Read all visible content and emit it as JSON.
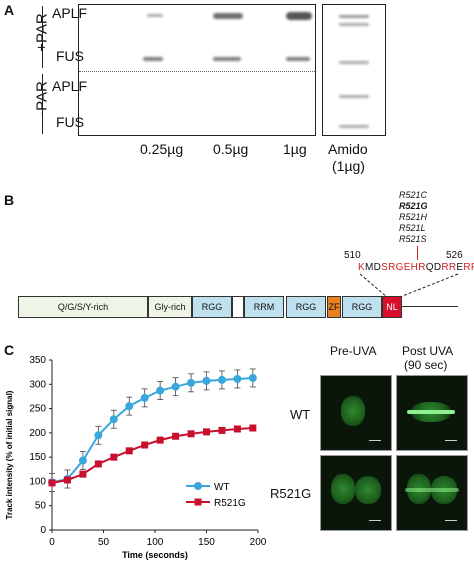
{
  "panel_a": {
    "letter": "A",
    "group_plus": "+PAR",
    "group_minus": "-PAR",
    "row_labels": [
      "APLF",
      "FUS",
      "APLF",
      "FUS"
    ],
    "col_labels": [
      "0.25µg",
      "0.5µg",
      "1µg"
    ],
    "amido_label_1": "Amido",
    "amido_label_2": "(1µg)"
  },
  "panel_b": {
    "letter": "B",
    "mutations": [
      "R521C",
      "R521G",
      "R521H",
      "R521L",
      "R521S"
    ],
    "pos_start": "510",
    "pos_end": "526",
    "sequence": [
      {
        "t": "K",
        "c": "#cc2222"
      },
      {
        "t": "MD",
        "c": "#111111"
      },
      {
        "t": "SRGEHR",
        "c": "#cc2222"
      },
      {
        "t": "QD",
        "c": "#111111"
      },
      {
        "t": "R",
        "c": "#cc2222"
      },
      {
        "t": "R",
        "c": "#cc2222"
      },
      {
        "t": "E",
        "c": "#111111"
      },
      {
        "t": "RPY",
        "c": "#cc2222"
      }
    ],
    "domains": [
      "Q/G/S/Y-rich",
      "Gly-rich",
      "RGG",
      "RRM",
      "RGG",
      "ZF",
      "RGG",
      "NL"
    ]
  },
  "panel_c": {
    "letter": "C",
    "microscopy": {
      "col_labels": [
        "Pre-UVA",
        "Post UVA",
        "(90 sec)"
      ],
      "row_labels": [
        "WT",
        "R521G"
      ]
    }
  },
  "chart_data": {
    "type": "line",
    "xlabel": "Time (seconds)",
    "ylabel": "Track intensity (% of initial signal)",
    "xlim": [
      0,
      200
    ],
    "ylim": [
      0,
      350
    ],
    "xticks": [
      0,
      50,
      100,
      150,
      200
    ],
    "yticks": [
      0,
      50,
      100,
      150,
      200,
      250,
      300,
      350
    ],
    "legend_position": "lower-right",
    "series": [
      {
        "name": "WT",
        "color": "#3aa7dc",
        "x": [
          0,
          15,
          30,
          45,
          60,
          75,
          90,
          105,
          120,
          135,
          150,
          165,
          180,
          195
        ],
        "y": [
          98,
          105,
          143,
          195,
          228,
          255,
          272,
          287,
          295,
          303,
          307,
          309,
          311,
          313
        ]
      },
      {
        "name": "R521G",
        "color": "#c8102e",
        "x": [
          0,
          15,
          30,
          45,
          60,
          75,
          90,
          105,
          120,
          135,
          150,
          165,
          180,
          195
        ],
        "y": [
          97,
          103,
          115,
          136,
          150,
          163,
          175,
          185,
          193,
          198,
          202,
          205,
          208,
          210
        ]
      }
    ]
  }
}
